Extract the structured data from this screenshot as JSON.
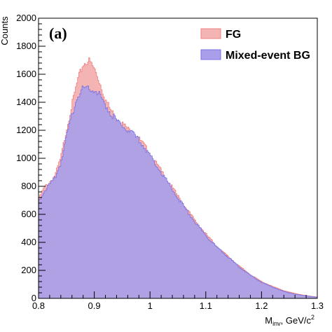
{
  "chart_data": {
    "type": "histogram",
    "panel_label": "(a)",
    "xlabel": {
      "main": "M",
      "sub": "inv",
      "unit": ", GeV/c",
      "sup": "2"
    },
    "ylabel": "Counts",
    "xlim": [
      0.8,
      1.3
    ],
    "ylim": [
      0,
      2000
    ],
    "x_ticks": [
      "0.8",
      "0.9",
      "1",
      "1.1",
      "1.2",
      "1.3"
    ],
    "y_ticks": [
      "0",
      "200",
      "400",
      "600",
      "800",
      "1000",
      "1200",
      "1400",
      "1600",
      "1800",
      "2000"
    ],
    "legend_position": "top-right",
    "series": [
      {
        "name": "FG",
        "fill": "#f4b4b4",
        "line": "#f08080",
        "x": [
          0.8,
          0.81,
          0.82,
          0.83,
          0.84,
          0.85,
          0.86,
          0.87,
          0.88,
          0.89,
          0.9,
          0.91,
          0.92,
          0.93,
          0.94,
          0.95,
          0.96,
          0.97,
          0.98,
          0.99,
          1.0,
          1.02,
          1.04,
          1.06,
          1.08,
          1.1,
          1.12,
          1.14,
          1.16,
          1.18,
          1.2,
          1.22,
          1.24,
          1.26,
          1.28,
          1.3
        ],
        "values": [
          700,
          790,
          830,
          880,
          1000,
          1200,
          1380,
          1550,
          1670,
          1700,
          1640,
          1540,
          1420,
          1340,
          1290,
          1250,
          1210,
          1180,
          1140,
          1090,
          1030,
          910,
          790,
          670,
          560,
          460,
          370,
          300,
          230,
          170,
          120,
          85,
          55,
          35,
          20,
          10
        ]
      },
      {
        "name": "Mixed-event BG",
        "fill": "#a99ee9",
        "line": "#7b72e4",
        "x": [
          0.8,
          0.81,
          0.82,
          0.83,
          0.84,
          0.85,
          0.86,
          0.87,
          0.88,
          0.89,
          0.9,
          0.91,
          0.92,
          0.93,
          0.94,
          0.95,
          0.96,
          0.97,
          0.98,
          0.99,
          1.0,
          1.02,
          1.04,
          1.06,
          1.08,
          1.1,
          1.12,
          1.14,
          1.16,
          1.18,
          1.2,
          1.22,
          1.24,
          1.26,
          1.28,
          1.3
        ],
        "values": [
          690,
          770,
          810,
          860,
          970,
          1150,
          1310,
          1440,
          1500,
          1510,
          1490,
          1450,
          1380,
          1320,
          1270,
          1230,
          1200,
          1170,
          1130,
          1080,
          1020,
          900,
          780,
          660,
          550,
          450,
          365,
          295,
          225,
          165,
          115,
          80,
          50,
          30,
          18,
          8
        ]
      }
    ]
  }
}
